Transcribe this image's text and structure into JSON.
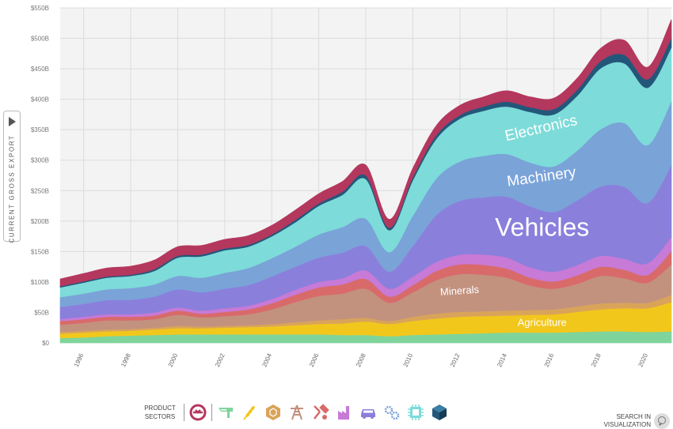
{
  "y_axis_button": {
    "label": "CURRENT GROSS EXPORT",
    "icon": "play-triangle-icon"
  },
  "footer": {
    "sectors_label_line1": "PRODUCT",
    "sectors_label_line2": "SECTORS",
    "search_line1": "SEARCH IN",
    "search_line2": "VISUALIZATION",
    "sector_icons": [
      {
        "name": "services-icon",
        "color": "#b4375e"
      },
      {
        "name": "textiles-icon",
        "color": "#7fd49b"
      },
      {
        "name": "agriculture-icon",
        "color": "#f2c71c"
      },
      {
        "name": "stone-icon",
        "color": "#d9a45a"
      },
      {
        "name": "minerals-icon",
        "color": "#c2927f"
      },
      {
        "name": "metals-icon",
        "color": "#d96a6a"
      },
      {
        "name": "chemicals-icon",
        "color": "#c77ad6"
      },
      {
        "name": "vehicles-icon",
        "color": "#8b7fdc"
      },
      {
        "name": "machinery-icon",
        "color": "#7aa3d8"
      },
      {
        "name": "electronics-icon",
        "color": "#7ddbd9"
      },
      {
        "name": "other-icon",
        "color": "#23577a"
      }
    ]
  },
  "chart_data": {
    "type": "area",
    "stacked": true,
    "grid": true,
    "background": "#f3f3f3",
    "ylim": [
      0,
      550
    ],
    "yticks": [
      0,
      50,
      100,
      150,
      200,
      250,
      300,
      350,
      400,
      450,
      500,
      550
    ],
    "ytick_labels": [
      "$0",
      "$50B",
      "$100B",
      "$150B",
      "$200B",
      "$250B",
      "$300B",
      "$350B",
      "$400B",
      "$450B",
      "$500B",
      "$550B"
    ],
    "xticks": [
      1996,
      1998,
      2000,
      2002,
      2004,
      2006,
      2008,
      2010,
      2012,
      2014,
      2016,
      2018,
      2020
    ],
    "x": [
      1995,
      1996,
      1997,
      1998,
      1999,
      2000,
      2001,
      2002,
      2003,
      2004,
      2005,
      2006,
      2007,
      2008,
      2009,
      2010,
      2011,
      2012,
      2013,
      2014,
      2015,
      2016,
      2017,
      2018,
      2019,
      2020,
      2021
    ],
    "series": [
      {
        "name": "Textiles",
        "color": "#7fd49b",
        "values": [
          8,
          9,
          11,
          12,
          13,
          14,
          14,
          14,
          14,
          14,
          14,
          14,
          13,
          13,
          11,
          13,
          14,
          15,
          16,
          17,
          17,
          17,
          18,
          19,
          19,
          18,
          19
        ]
      },
      {
        "name": "Agriculture",
        "color": "#f2c71c",
        "values": [
          7,
          8,
          8,
          8,
          9,
          10,
          10,
          11,
          12,
          13,
          15,
          17,
          19,
          22,
          20,
          23,
          26,
          28,
          28,
          28,
          29,
          30,
          33,
          36,
          38,
          39,
          48
        ]
      },
      {
        "name": "Stone",
        "color": "#d9a45a",
        "values": [
          3,
          3,
          3,
          3,
          3,
          4,
          3,
          3,
          3,
          4,
          5,
          6,
          7,
          6,
          5,
          7,
          8,
          8,
          8,
          8,
          8,
          8,
          9,
          10,
          9,
          9,
          12
        ]
      },
      {
        "name": "Minerals",
        "color": "#c2927f",
        "values": [
          12,
          13,
          15,
          14,
          14,
          18,
          15,
          16,
          18,
          24,
          33,
          40,
          42,
          48,
          30,
          40,
          55,
          62,
          60,
          54,
          40,
          34,
          37,
          45,
          40,
          33,
          50
        ]
      },
      {
        "name": "Metals",
        "color": "#d96a6a",
        "values": [
          6,
          6,
          6,
          6,
          6,
          7,
          6,
          7,
          8,
          10,
          12,
          14,
          15,
          16,
          10,
          12,
          15,
          16,
          16,
          15,
          13,
          12,
          14,
          15,
          14,
          13,
          22
        ]
      },
      {
        "name": "Chemicals",
        "color": "#c77ad6",
        "values": [
          3,
          4,
          4,
          4,
          5,
          5,
          5,
          6,
          6,
          7,
          8,
          9,
          10,
          14,
          13,
          14,
          15,
          16,
          17,
          18,
          17,
          16,
          17,
          18,
          18,
          19,
          23
        ]
      },
      {
        "name": "Vehicles",
        "color": "#8b7fdc",
        "values": [
          20,
          21,
          23,
          24,
          26,
          30,
          30,
          32,
          34,
          37,
          38,
          40,
          42,
          40,
          28,
          50,
          77,
          88,
          94,
          100,
          100,
          98,
          106,
          114,
          118,
          99,
          118
        ]
      },
      {
        "name": "Machinery",
        "color": "#7aa3d8",
        "values": [
          16,
          17,
          18,
          19,
          20,
          22,
          24,
          26,
          28,
          30,
          33,
          38,
          42,
          45,
          32,
          50,
          60,
          65,
          68,
          70,
          72,
          75,
          82,
          94,
          105,
          95,
          105
        ]
      },
      {
        "name": "Electronics",
        "color": "#7ddbd9",
        "values": [
          16,
          18,
          19,
          20,
          22,
          30,
          35,
          37,
          35,
          36,
          40,
          47,
          53,
          65,
          36,
          58,
          65,
          70,
          74,
          78,
          83,
          85,
          90,
          100,
          98,
          94,
          88
        ]
      },
      {
        "name": "Other",
        "color": "#23577a",
        "values": [
          2,
          2,
          2,
          2,
          3,
          3,
          3,
          3,
          3,
          3,
          4,
          4,
          5,
          6,
          4,
          5,
          6,
          6,
          7,
          8,
          8,
          9,
          10,
          12,
          14,
          14,
          16
        ]
      },
      {
        "name": "Services",
        "color": "#b4375e",
        "values": [
          12,
          13,
          14,
          14,
          15,
          15,
          15,
          15,
          15,
          15,
          16,
          16,
          17,
          17,
          14,
          15,
          16,
          16,
          16,
          18,
          17,
          18,
          19,
          21,
          24,
          20,
          30
        ]
      }
    ],
    "labels": [
      {
        "text": "Electronics",
        "series": "Electronics",
        "x": 2015.5,
        "y": 345,
        "rotate": -13,
        "font_size": 19
      },
      {
        "text": "Machinery",
        "series": "Machinery",
        "x": 2015.5,
        "y": 265,
        "rotate": -8,
        "font_size": 19
      },
      {
        "text": "Vehicles",
        "series": "Vehicles",
        "x": 2015.5,
        "y": 176,
        "rotate": 0,
        "font_size": 32
      },
      {
        "text": "Minerals",
        "series": "Minerals",
        "x": 2012,
        "y": 80,
        "rotate": -4,
        "font_size": 13
      },
      {
        "text": "Agriculture",
        "series": "Agriculture",
        "x": 2015.5,
        "y": 28,
        "rotate": 0,
        "font_size": 13
      }
    ]
  }
}
